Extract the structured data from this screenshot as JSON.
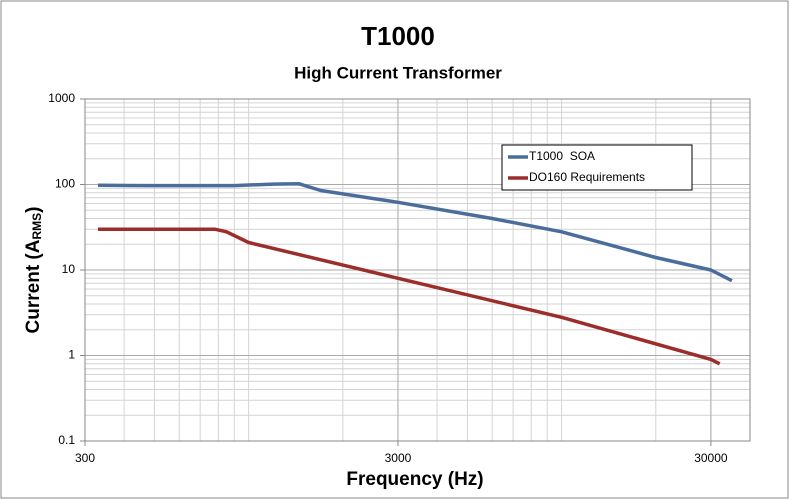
{
  "chart_data": {
    "type": "line",
    "title": "T1000",
    "subtitle": "High Current Transformer",
    "xlabel": "Frequency (Hz)",
    "ylabel": "Current (A",
    "ylabel_sub": "RMS",
    "ylabel_end": ")",
    "xscale": "log",
    "yscale": "log",
    "grid": true,
    "minor_grid": true,
    "legend": "upper right",
    "xlim": [
      300,
      40000
    ],
    "xticks": [
      300,
      3000,
      30000
    ],
    "ylim": [
      0.1,
      1000
    ],
    "yticks": [
      0.1,
      1,
      10,
      100,
      1000
    ],
    "series": [
      {
        "name": "T1000  SOA",
        "color": "#4a6d9c",
        "x": [
          330,
          500,
          900,
          1200,
          1450,
          1700,
          3000,
          6000,
          10000,
          20000,
          30000,
          35000
        ],
        "values": [
          98,
          97,
          97,
          101,
          102,
          85,
          62,
          40,
          28,
          14,
          10,
          7.5
        ]
      },
      {
        "name": "DO160 Requirements",
        "color": "#9b2d2a",
        "x": [
          330,
          780,
          850,
          1000,
          3000,
          10000,
          30000,
          32000
        ],
        "values": [
          30,
          30,
          28,
          21,
          8,
          2.8,
          0.9,
          0.8
        ]
      }
    ]
  }
}
